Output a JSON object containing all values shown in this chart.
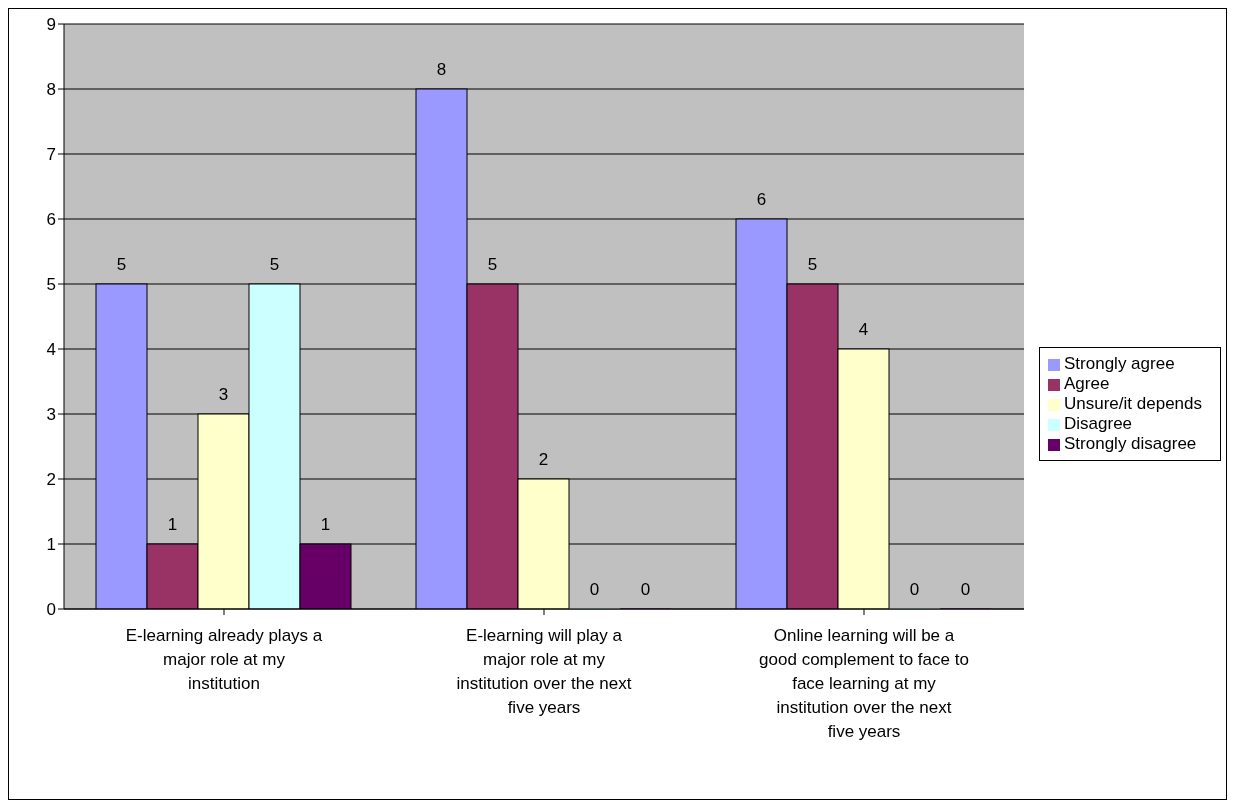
{
  "chart_data": {
    "type": "bar",
    "categories": [
      "E-learning already plays a major role at my institution",
      "E-learning will play a major role at my institution over the next five years",
      "Online learning will be a good complement to face to face learning at my institution over the next five years"
    ],
    "series": [
      {
        "name": "Strongly agree",
        "color": "#9999ff",
        "values": [
          5,
          8,
          6
        ]
      },
      {
        "name": "Agree",
        "color": "#993366",
        "values": [
          1,
          5,
          5
        ]
      },
      {
        "name": "Unsure/it depends",
        "color": "#ffffcc",
        "values": [
          3,
          2,
          4
        ]
      },
      {
        "name": "Disagree",
        "color": "#ccffff",
        "values": [
          5,
          0,
          0
        ]
      },
      {
        "name": "Strongly disagree",
        "color": "#660066",
        "values": [
          1,
          0,
          0
        ]
      }
    ],
    "ylim": [
      0,
      9
    ],
    "yticks": [
      0,
      1,
      2,
      3,
      4,
      5,
      6,
      7,
      8,
      9
    ],
    "grid": "y",
    "legend": "right",
    "data_labels": true
  }
}
